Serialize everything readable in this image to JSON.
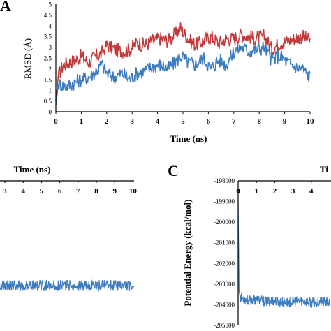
{
  "panels": {
    "a": {
      "letter": "A"
    },
    "b": {
      "letter": ""
    },
    "c": {
      "letter": "C"
    }
  },
  "chart_data": [
    {
      "type": "line",
      "panel": "A",
      "xlabel": "Time (ns)",
      "ylabel": "RMSD (Å)",
      "xlim": [
        0,
        10
      ],
      "ylim": [
        0,
        5
      ],
      "x_ticks": [
        "0",
        "1",
        "2",
        "3",
        "4",
        "5",
        "6",
        "7",
        "8",
        "9",
        "10"
      ],
      "y_ticks": [
        "0",
        "0.5",
        "1",
        "1.5",
        "2",
        "2.5",
        "3",
        "3.5",
        "4",
        "4.5",
        "5"
      ],
      "series": [
        {
          "color": "#c0393b",
          "x": [
            0,
            0.1,
            0.3,
            0.5,
            0.8,
            1.0,
            1.3,
            1.6,
            1.8,
            2.0,
            2.3,
            2.6,
            2.9,
            3.2,
            3.5,
            3.8,
            4.1,
            4.4,
            4.7,
            4.9,
            5.2,
            5.5,
            5.8,
            6.1,
            6.4,
            6.7,
            7.0,
            7.3,
            7.6,
            7.9,
            8.2,
            8.5,
            8.8,
            9.1,
            9.4,
            9.7,
            10.0
          ],
          "y": [
            0.5,
            1.7,
            2.2,
            2.3,
            2.4,
            2.6,
            2.3,
            2.6,
            2.7,
            3.1,
            2.9,
            2.8,
            2.9,
            3.2,
            3.1,
            3.3,
            3.4,
            3.3,
            3.6,
            3.9,
            3.4,
            3.1,
            3.3,
            3.5,
            3.2,
            3.4,
            3.4,
            3.6,
            3.5,
            3.4,
            3.5,
            2.9,
            3.2,
            3.3,
            3.4,
            3.5,
            3.3
          ]
        },
        {
          "color": "#3e7cc0",
          "x": [
            0,
            0.1,
            0.3,
            0.5,
            0.8,
            1.0,
            1.3,
            1.6,
            1.8,
            2.0,
            2.3,
            2.6,
            2.9,
            3.2,
            3.5,
            3.8,
            4.1,
            4.4,
            4.7,
            4.9,
            5.2,
            5.5,
            5.8,
            6.1,
            6.4,
            6.7,
            7.0,
            7.3,
            7.6,
            7.9,
            8.2,
            8.5,
            8.8,
            9.1,
            9.4,
            9.7,
            10.0
          ],
          "y": [
            0.3,
            1.3,
            1.2,
            1.2,
            1.4,
            1.5,
            1.6,
            1.9,
            2.2,
            1.8,
            1.6,
            1.8,
            1.5,
            1.8,
            1.9,
            2.1,
            2.2,
            2.0,
            2.3,
            2.6,
            2.3,
            2.2,
            2.5,
            2.0,
            2.4,
            2.2,
            2.8,
            3.0,
            2.8,
            2.9,
            3.0,
            2.4,
            2.6,
            2.3,
            2.1,
            2.0,
            1.6
          ]
        }
      ]
    },
    {
      "type": "line",
      "panel": "B",
      "xlabel": "Time (ns)",
      "xlim": [
        0,
        10
      ],
      "x_ticks": [
        "3",
        "4",
        "5",
        "6",
        "7",
        "8",
        "9",
        "10"
      ],
      "series": [
        {
          "color": "#3e7cc0",
          "baseline_fraction": 0.74
        }
      ]
    },
    {
      "type": "line",
      "panel": "C",
      "ylabel": "Potential Energy (kcal/mol)",
      "xlabel": "Ti",
      "xlim": [
        0,
        10
      ],
      "ylim": [
        -205000,
        -198000
      ],
      "x_ticks": [
        "0",
        "1",
        "2",
        "3",
        "4"
      ],
      "y_ticks": [
        "-198000",
        "-199000",
        "-200000",
        "-201000",
        "-202000",
        "-203000",
        "-204000",
        "-205000"
      ],
      "series": [
        {
          "color": "#3e7cc0",
          "x": [
            0,
            0.02,
            0.05,
            0.1,
            0.3,
            0.6,
            1.0,
            1.5,
            2.0,
            2.5,
            3.0,
            3.5,
            4.0,
            4.5,
            5.0
          ],
          "y": [
            -199000,
            -200500,
            -203300,
            -203600,
            -203700,
            -203800,
            -203750,
            -203850,
            -203800,
            -203900,
            -203850,
            -203800,
            -203900,
            -203850,
            -203900
          ]
        }
      ]
    }
  ]
}
